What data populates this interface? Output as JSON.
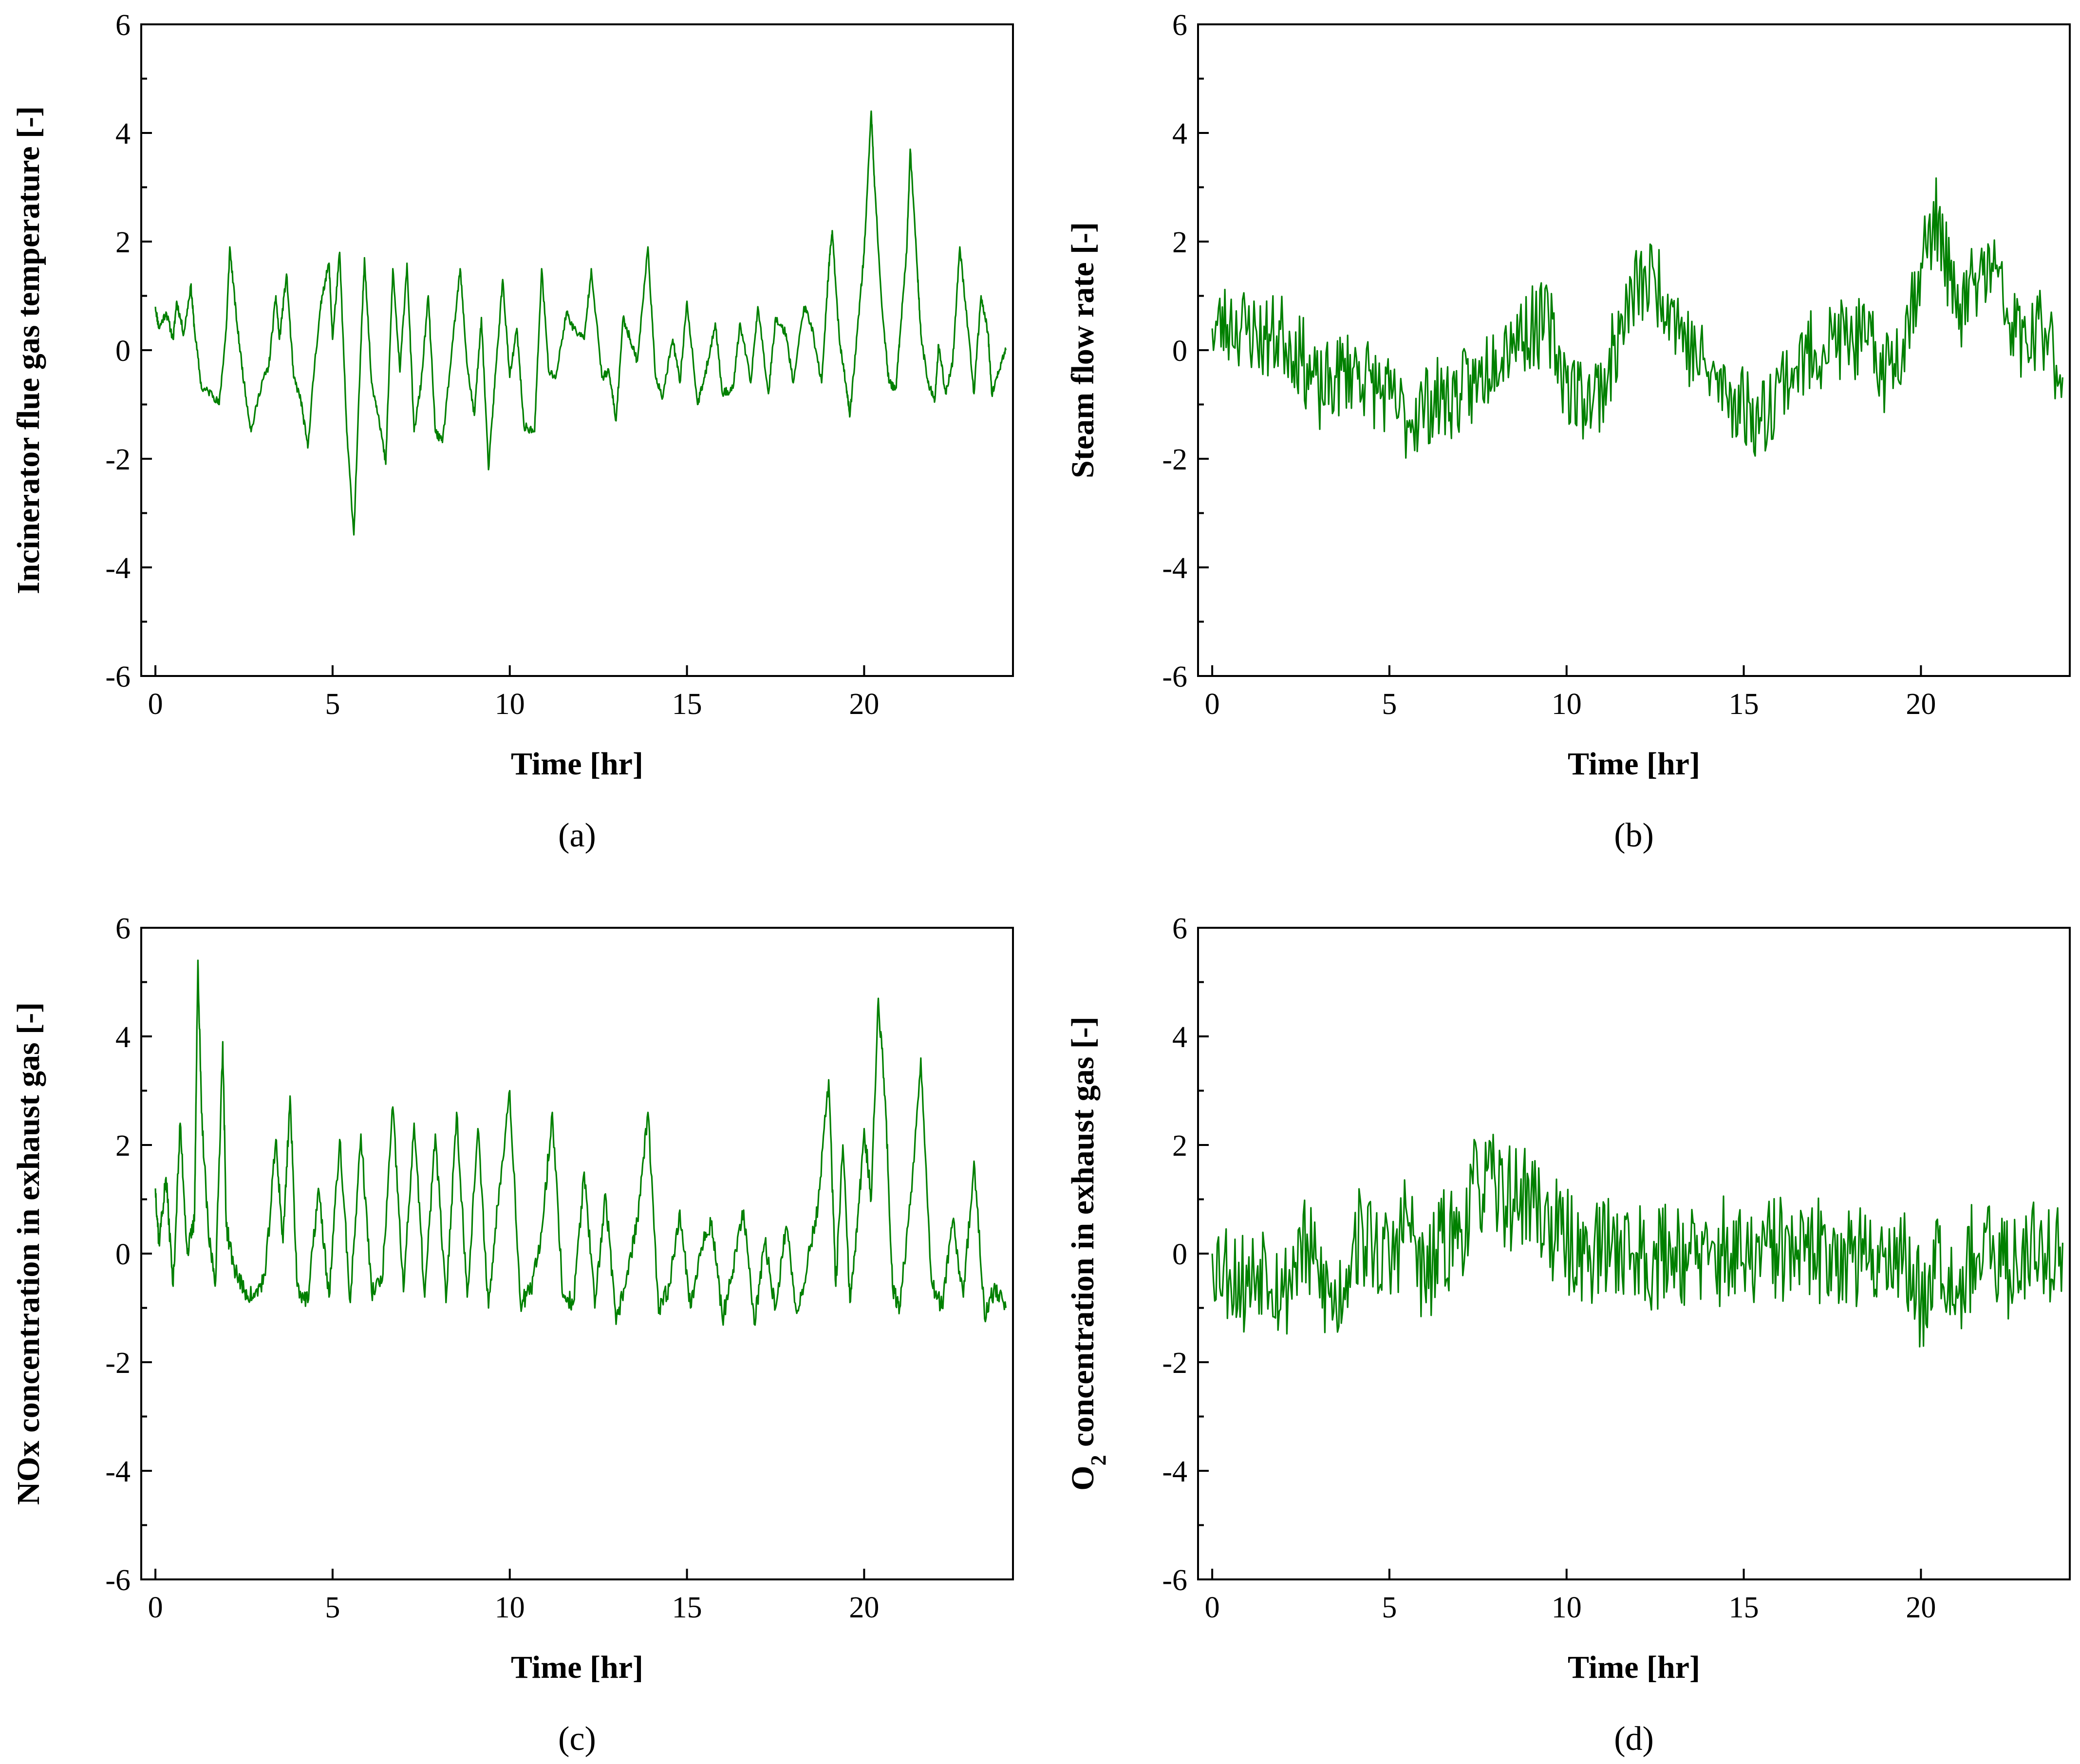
{
  "figure": {
    "line_color": "#008000",
    "axis_color": "#000000"
  },
  "chart_data": [
    {
      "id": "a",
      "type": "line",
      "panel_label": "(a)",
      "title": "",
      "xlabel": "Time [hr]",
      "ylabel": "Incinerator flue gas temperature [-]",
      "xlim": [
        -0.4,
        24.2
      ],
      "ylim": [
        -6,
        6
      ],
      "xticks": [
        0,
        5,
        10,
        15,
        20
      ],
      "yticks": [
        -6,
        -4,
        -2,
        0,
        2,
        4,
        6
      ],
      "series": [
        {
          "name": "Incinerator flue gas temperature",
          "noise": 0.08,
          "seed": 11,
          "x": [
            0,
            0.1,
            0.3,
            0.5,
            0.6,
            0.8,
            1.0,
            1.1,
            1.3,
            1.6,
            1.8,
            2.0,
            2.1,
            2.3,
            2.5,
            2.7,
            3.0,
            3.2,
            3.4,
            3.5,
            3.7,
            3.9,
            4.1,
            4.3,
            4.5,
            4.7,
            4.9,
            5.0,
            5.2,
            5.4,
            5.6,
            5.8,
            5.9,
            6.1,
            6.3,
            6.5,
            6.7,
            6.9,
            7.1,
            7.3,
            7.5,
            7.7,
            7.9,
            8.1,
            8.4,
            8.6,
            8.8,
            9.0,
            9.2,
            9.4,
            9.6,
            9.8,
            10.0,
            10.2,
            10.4,
            10.7,
            10.9,
            11.1,
            11.3,
            11.6,
            11.8,
            12.1,
            12.3,
            12.6,
            12.8,
            13.0,
            13.2,
            13.4,
            13.6,
            13.9,
            14.1,
            14.3,
            14.6,
            14.8,
            15.0,
            15.3,
            15.5,
            15.8,
            16.0,
            16.3,
            16.5,
            16.8,
            17.0,
            17.3,
            17.5,
            17.8,
            18.0,
            18.3,
            18.5,
            18.8,
            19.0,
            19.1,
            19.3,
            19.5,
            19.6,
            19.8,
            20.0,
            20.2,
            20.3,
            20.5,
            20.7,
            20.9,
            21.0,
            21.2,
            21.3,
            21.5,
            21.6,
            21.8,
            22.0,
            22.1,
            22.3,
            22.5,
            22.7,
            22.9,
            23.1,
            23.3,
            23.5,
            23.6,
            23.8,
            24.0
          ],
          "y": [
            0.8,
            0.4,
            0.7,
            0.2,
            0.9,
            0.3,
            1.2,
            0.4,
            -0.7,
            -0.8,
            -1.0,
            0.4,
            1.9,
            0.5,
            -0.6,
            -1.5,
            -0.6,
            -0.3,
            1.0,
            0.2,
            1.4,
            -0.5,
            -0.9,
            -1.8,
            -0.2,
            1.0,
            1.6,
            0.2,
            1.8,
            -1.5,
            -3.4,
            0.1,
            1.7,
            -0.6,
            -1.2,
            -2.1,
            1.5,
            -0.4,
            1.6,
            -1.5,
            -0.6,
            1.0,
            -1.5,
            -1.7,
            0.2,
            1.5,
            -0.3,
            -1.2,
            0.6,
            -2.2,
            -0.4,
            1.3,
            -0.5,
            0.4,
            -1.4,
            -1.5,
            1.5,
            -0.4,
            -0.5,
            0.7,
            0.4,
            0.2,
            1.5,
            -0.5,
            -0.4,
            -1.3,
            0.6,
            0.2,
            -0.2,
            1.9,
            -0.4,
            -0.9,
            0.2,
            -0.6,
            0.9,
            -1.0,
            -0.5,
            0.5,
            -0.8,
            -0.7,
            0.5,
            -0.6,
            0.8,
            -0.8,
            0.6,
            0.3,
            -0.6,
            0.8,
            0.5,
            -0.6,
            1.5,
            2.2,
            0.2,
            -0.7,
            -1.2,
            0.3,
            1.8,
            4.4,
            3.0,
            0.8,
            -0.6,
            -0.7,
            0.2,
            1.8,
            3.7,
            1.5,
            0.3,
            -0.6,
            -0.9,
            0.1,
            -0.8,
            -0.2,
            1.9,
            0.6,
            -0.8,
            1.0,
            0.3,
            -0.8,
            -0.4,
            0.0
          ]
        }
      ]
    },
    {
      "id": "b",
      "type": "line",
      "panel_label": "(b)",
      "title": "",
      "xlabel": "Time [hr]",
      "ylabel": "Steam flow rate [-]",
      "xlim": [
        -0.4,
        24.2
      ],
      "ylim": [
        -6,
        6
      ],
      "xticks": [
        0,
        5,
        10,
        15,
        20
      ],
      "yticks": [
        -6,
        -4,
        -2,
        0,
        2,
        4,
        6
      ],
      "series": [
        {
          "name": "Steam flow rate",
          "noise": 0.8,
          "seed": 23,
          "x": [
            0,
            0.5,
            1.0,
            1.5,
            2.0,
            2.5,
            3.0,
            3.5,
            4.0,
            4.5,
            5.0,
            5.5,
            6.0,
            6.5,
            7.0,
            7.5,
            8.0,
            8.5,
            9.0,
            9.5,
            10.0,
            10.5,
            11.0,
            11.5,
            12.0,
            12.5,
            13.0,
            13.5,
            14.0,
            14.5,
            15.0,
            15.5,
            16.0,
            16.5,
            17.0,
            17.5,
            18.0,
            18.5,
            19.0,
            19.5,
            20.0,
            20.5,
            21.0,
            21.5,
            22.0,
            22.5,
            23.0,
            23.5,
            24.0
          ],
          "y": [
            0.4,
            0.5,
            0.4,
            0.2,
            0.3,
            -0.1,
            -0.8,
            -0.5,
            -0.3,
            -0.6,
            -0.9,
            -1.3,
            -1.0,
            -0.9,
            -0.8,
            -0.6,
            0.0,
            0.3,
            0.4,
            0.5,
            -0.6,
            -0.9,
            -0.7,
            0.3,
            1.2,
            1.3,
            0.8,
            0.0,
            -0.4,
            -0.8,
            -1.0,
            -1.3,
            -0.6,
            -0.3,
            0.0,
            0.2,
            0.2,
            0.1,
            -0.4,
            0.2,
            1.6,
            2.5,
            0.6,
            1.2,
            1.6,
            0.5,
            0.1,
            0.4,
            -0.5
          ]
        }
      ]
    },
    {
      "id": "c",
      "type": "line",
      "panel_label": "(c)",
      "title": "",
      "xlabel": "Time [hr]",
      "ylabel": "NOx concentration in exhaust gas [-]",
      "xlim": [
        -0.4,
        24.2
      ],
      "ylim": [
        -6,
        6
      ],
      "xticks": [
        0,
        5,
        10,
        15,
        20
      ],
      "yticks": [
        -6,
        -4,
        -2,
        0,
        2,
        4,
        6
      ],
      "series": [
        {
          "name": "NOx concentration in exhaust gas",
          "noise": 0.18,
          "seed": 37,
          "x": [
            0,
            0.1,
            0.3,
            0.5,
            0.7,
            0.9,
            1.1,
            1.2,
            1.3,
            1.5,
            1.7,
            1.9,
            2.0,
            2.2,
            2.5,
            2.8,
            3.1,
            3.4,
            3.6,
            3.8,
            4.0,
            4.3,
            4.6,
            4.9,
            5.2,
            5.5,
            5.8,
            6.1,
            6.4,
            6.7,
            7.0,
            7.3,
            7.6,
            7.9,
            8.2,
            8.5,
            8.8,
            9.1,
            9.4,
            9.7,
            10.0,
            10.3,
            10.6,
            10.9,
            11.2,
            11.5,
            11.8,
            12.1,
            12.4,
            12.7,
            13.0,
            13.3,
            13.6,
            13.9,
            14.2,
            14.5,
            14.8,
            15.1,
            15.4,
            15.7,
            16.0,
            16.3,
            16.6,
            16.9,
            17.2,
            17.5,
            17.8,
            18.1,
            18.4,
            18.7,
            19.0,
            19.2,
            19.4,
            19.6,
            19.8,
            20.0,
            20.2,
            20.4,
            20.6,
            20.8,
            21.0,
            21.3,
            21.6,
            21.9,
            22.2,
            22.5,
            22.8,
            23.1,
            23.4,
            23.7,
            24.0
          ],
          "y": [
            1.2,
            0.2,
            1.4,
            -0.6,
            2.4,
            0.0,
            0.6,
            5.4,
            2.6,
            0.3,
            -0.5,
            3.9,
            0.5,
            -0.2,
            -0.7,
            -0.8,
            -0.4,
            2.1,
            0.2,
            2.9,
            -0.6,
            -0.9,
            1.2,
            -0.8,
            2.1,
            -0.9,
            2.2,
            -0.7,
            -0.5,
            2.7,
            -0.7,
            2.4,
            -0.8,
            2.2,
            -0.9,
            2.6,
            -0.8,
            2.3,
            -1.0,
            1.2,
            3.0,
            -0.9,
            -0.7,
            0.4,
            2.6,
            -0.8,
            -0.9,
            1.5,
            -1.0,
            1.1,
            -1.3,
            -0.4,
            0.6,
            2.6,
            -1.1,
            -0.6,
            0.8,
            -1.0,
            0.1,
            0.6,
            -1.2,
            -0.3,
            0.8,
            -1.3,
            0.2,
            -1.0,
            0.5,
            -1.1,
            -0.2,
            0.9,
            3.2,
            -0.6,
            2.0,
            -0.9,
            0.4,
            2.3,
            1.0,
            4.7,
            2.8,
            -0.6,
            -1.0,
            0.9,
            3.6,
            -0.5,
            -1.0,
            0.6,
            -0.8,
            1.7,
            -1.2,
            -0.6,
            -1.0
          ]
        }
      ]
    },
    {
      "id": "d",
      "type": "line",
      "panel_label": "(d)",
      "title": "",
      "xlabel": "Time [hr]",
      "ylabel_prefix": "O",
      "ylabel_sub": "2",
      "ylabel_suffix": " concentration in exhaust gas [-]",
      "xlim": [
        -0.4,
        24.2
      ],
      "ylim": [
        -6,
        6
      ],
      "xticks": [
        0,
        5,
        10,
        15,
        20
      ],
      "yticks": [
        -6,
        -4,
        -2,
        0,
        2,
        4,
        6
      ],
      "series": [
        {
          "name": "O2 concentration in exhaust gas",
          "noise": 1.0,
          "seed": 53,
          "x": [
            0,
            0.5,
            1.0,
            1.5,
            2.0,
            2.5,
            3.0,
            3.5,
            4.0,
            4.5,
            5.0,
            5.5,
            6.0,
            6.5,
            7.0,
            7.5,
            8.0,
            8.5,
            9.0,
            9.5,
            10.0,
            10.5,
            11.0,
            11.5,
            12.0,
            12.5,
            13.0,
            13.5,
            14.0,
            14.5,
            15.0,
            15.5,
            16.0,
            16.5,
            17.0,
            17.5,
            18.0,
            18.5,
            19.0,
            19.5,
            20.0,
            20.5,
            21.0,
            21.5,
            22.0,
            22.5,
            23.0,
            23.5,
            24.0
          ],
          "y": [
            0.0,
            -0.3,
            -0.6,
            0.0,
            -0.8,
            0.2,
            -0.4,
            -1.0,
            0.3,
            0.2,
            -0.2,
            0.7,
            -0.6,
            0.2,
            0.4,
            1.3,
            1.2,
            1.0,
            1.1,
            0.5,
            0.2,
            0.0,
            0.1,
            0.2,
            0.0,
            -0.1,
            0.1,
            0.0,
            -0.2,
            0.1,
            -0.2,
            0.0,
            0.1,
            -0.1,
            0.0,
            0.1,
            0.0,
            -0.2,
            0.1,
            -0.1,
            -0.9,
            0.2,
            -0.6,
            0.0,
            -0.1,
            -0.3,
            0.2,
            0.0,
            0.2
          ]
        }
      ]
    }
  ]
}
